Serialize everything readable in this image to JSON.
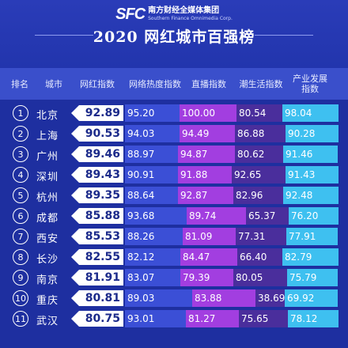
{
  "header": {
    "logo_mark": "SFC",
    "logo_cn": "南方财经全媒体集团",
    "logo_en": "Southern Finance Omnimedia Corp.",
    "title": "2020 网红城市百强榜"
  },
  "columns": [
    "排名",
    "城市",
    "网红指数",
    "网络热度指数",
    "直播指数",
    "潮生活指数",
    "产业发展指数"
  ],
  "colors": {
    "network": "#3b4fd6",
    "live": "#a23ee0",
    "life": "#4a2e9c",
    "industry": "#3ec0f0",
    "background": "#1e2fa0"
  },
  "rows": [
    {
      "rank": "1",
      "city": "北京",
      "index": "92.89",
      "network": "95.20",
      "live": "100.00",
      "life": "80.54",
      "industry": "98.04"
    },
    {
      "rank": "2",
      "city": "上海",
      "index": "90.53",
      "network": "94.03",
      "live": "94.49",
      "life": "86.88",
      "industry": "90.28"
    },
    {
      "rank": "3",
      "city": "广州",
      "index": "89.46",
      "network": "88.97",
      "live": "94.87",
      "life": "80.62",
      "industry": "91.46"
    },
    {
      "rank": "4",
      "city": "深圳",
      "index": "89.43",
      "network": "90.91",
      "live": "91.88",
      "life": "92.65",
      "industry": "91.43"
    },
    {
      "rank": "5",
      "city": "杭州",
      "index": "89.35",
      "network": "88.64",
      "live": "92.87",
      "life": "82.96",
      "industry": "92.48"
    },
    {
      "rank": "6",
      "city": "成都",
      "index": "85.88",
      "network": "93.68",
      "live": "89.74",
      "life": "65.37",
      "industry": "76.20"
    },
    {
      "rank": "7",
      "city": "西安",
      "index": "85.53",
      "network": "88.26",
      "live": "81.09",
      "life": "77.31",
      "industry": "77.91"
    },
    {
      "rank": "8",
      "city": "长沙",
      "index": "82.55",
      "network": "82.12",
      "live": "84.47",
      "life": "66.40",
      "industry": "82.79"
    },
    {
      "rank": "9",
      "city": "南京",
      "index": "81.91",
      "network": "83.07",
      "live": "79.39",
      "life": "80.05",
      "industry": "75.79"
    },
    {
      "rank": "10",
      "city": "重庆",
      "index": "80.81",
      "network": "89.03",
      "live": "83.88",
      "life": "38.69",
      "industry": "69.92"
    },
    {
      "rank": "11",
      "city": "武汉",
      "index": "80.75",
      "network": "93.01",
      "live": "81.27",
      "life": "75.65",
      "industry": "78.12"
    }
  ]
}
